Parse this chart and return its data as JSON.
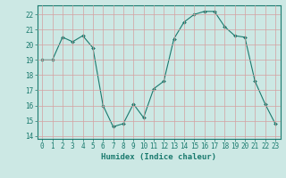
{
  "x": [
    0,
    1,
    2,
    3,
    4,
    5,
    6,
    7,
    8,
    9,
    10,
    11,
    12,
    13,
    14,
    15,
    16,
    17,
    18,
    19,
    20,
    21,
    22,
    23
  ],
  "y": [
    19.0,
    19.0,
    20.5,
    20.2,
    20.6,
    19.8,
    16.0,
    14.6,
    14.8,
    16.1,
    15.2,
    17.1,
    17.6,
    20.4,
    21.5,
    22.0,
    22.2,
    22.2,
    21.2,
    20.6,
    20.5,
    17.6,
    16.1,
    14.8
  ],
  "line_color": "#1a7a6e",
  "marker_color": "#1a7a6e",
  "bg_color": "#cce8e4",
  "grid_color": "#d4a0a0",
  "xlabel": "Humidex (Indice chaleur)",
  "ylim": [
    13.8,
    22.6
  ],
  "xlim": [
    -0.5,
    23.5
  ],
  "yticks": [
    14,
    15,
    16,
    17,
    18,
    19,
    20,
    21,
    22
  ],
  "xticks": [
    0,
    1,
    2,
    3,
    4,
    5,
    6,
    7,
    8,
    9,
    10,
    11,
    12,
    13,
    14,
    15,
    16,
    17,
    18,
    19,
    20,
    21,
    22,
    23
  ],
  "axis_fontsize": 6.5,
  "tick_fontsize": 5.5
}
